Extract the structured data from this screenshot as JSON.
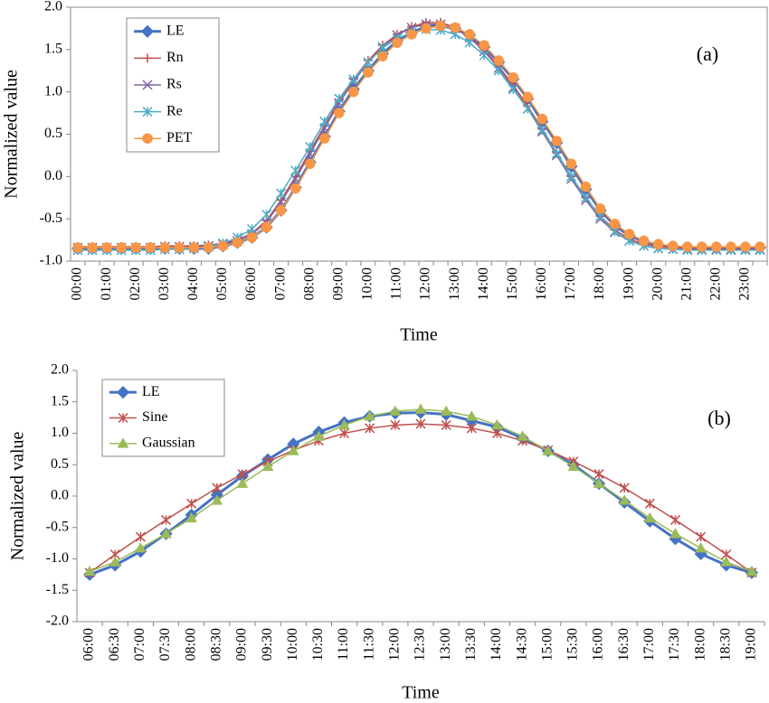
{
  "chart_data": [
    {
      "type": "line",
      "annotation": "(a)",
      "xlabel": "Time",
      "ylabel": "Normalized value",
      "categories": [
        "00:00",
        null,
        "01:00",
        null,
        "02:00",
        null,
        "03:00",
        null,
        "04:00",
        null,
        "05:00",
        null,
        "06:00",
        null,
        "07:00",
        null,
        "08:00",
        null,
        "09:00",
        null,
        "10:00",
        null,
        "11:00",
        null,
        "12:00",
        null,
        "13:00",
        null,
        "14:00",
        null,
        "15:00",
        null,
        "16:00",
        null,
        "17:00",
        null,
        "18:00",
        null,
        "19:00",
        null,
        "20:00",
        null,
        "21:00",
        null,
        "22:00",
        null,
        "23:00",
        null
      ],
      "ylim": [
        -1.0,
        2.0
      ],
      "yticks": [
        {
          "value": -1.0,
          "label": "-1.0"
        },
        -0.5,
        {
          "value": 0.0,
          "label": "0.0"
        },
        0.5,
        {
          "value": 1.0,
          "label": "1.0"
        },
        1.5,
        {
          "value": 2.0,
          "label": "2.0"
        }
      ],
      "legend": "upper left",
      "series": [
        {
          "name": "LE",
          "color": "#4472c4",
          "marker": "diamond",
          "width": 3,
          "values": [
            -0.85,
            -0.85,
            -0.85,
            -0.85,
            -0.85,
            -0.85,
            -0.85,
            -0.85,
            -0.85,
            -0.85,
            -0.82,
            -0.78,
            -0.72,
            -0.6,
            -0.4,
            -0.13,
            0.17,
            0.47,
            0.77,
            1.03,
            1.25,
            1.45,
            1.6,
            1.7,
            1.77,
            1.78,
            1.75,
            1.67,
            1.53,
            1.35,
            1.15,
            0.92,
            0.65,
            0.4,
            0.12,
            -0.15,
            -0.4,
            -0.58,
            -0.7,
            -0.77,
            -0.81,
            -0.83,
            -0.84,
            -0.84,
            -0.84,
            -0.84,
            -0.84,
            -0.84
          ]
        },
        {
          "name": "Rn",
          "color": "#c0504d",
          "marker": "plus",
          "width": 1.5,
          "values": [
            -0.83,
            -0.83,
            -0.83,
            -0.83,
            -0.83,
            -0.83,
            -0.82,
            -0.82,
            -0.82,
            -0.81,
            -0.79,
            -0.75,
            -0.67,
            -0.52,
            -0.28,
            0.0,
            0.3,
            0.6,
            0.9,
            1.15,
            1.37,
            1.55,
            1.68,
            1.77,
            1.82,
            1.82,
            1.76,
            1.65,
            1.5,
            1.3,
            1.08,
            0.83,
            0.56,
            0.28,
            0.0,
            -0.25,
            -0.47,
            -0.63,
            -0.74,
            -0.8,
            -0.83,
            -0.84,
            -0.84,
            -0.84,
            -0.84,
            -0.84,
            -0.84,
            -0.84
          ]
        },
        {
          "name": "Rs",
          "color": "#8064a2",
          "marker": "x",
          "width": 1.5,
          "values": [
            -0.84,
            -0.84,
            -0.84,
            -0.84,
            -0.84,
            -0.84,
            -0.83,
            -0.83,
            -0.83,
            -0.82,
            -0.8,
            -0.76,
            -0.68,
            -0.54,
            -0.3,
            -0.03,
            0.27,
            0.57,
            0.87,
            1.12,
            1.35,
            1.53,
            1.67,
            1.76,
            1.8,
            1.8,
            1.75,
            1.64,
            1.48,
            1.28,
            1.05,
            0.8,
            0.53,
            0.25,
            -0.03,
            -0.28,
            -0.5,
            -0.66,
            -0.76,
            -0.82,
            -0.85,
            -0.86,
            -0.86,
            -0.86,
            -0.86,
            -0.86,
            -0.86,
            -0.86
          ]
        },
        {
          "name": "Re",
          "color": "#4bacc6",
          "marker": "asterisk",
          "width": 1.5,
          "values": [
            -0.87,
            -0.87,
            -0.87,
            -0.87,
            -0.87,
            -0.87,
            -0.86,
            -0.86,
            -0.85,
            -0.83,
            -0.79,
            -0.72,
            -0.62,
            -0.45,
            -0.2,
            0.07,
            0.35,
            0.65,
            0.92,
            1.15,
            1.35,
            1.52,
            1.63,
            1.7,
            1.74,
            1.73,
            1.68,
            1.58,
            1.43,
            1.25,
            1.03,
            0.8,
            0.55,
            0.27,
            0.0,
            -0.25,
            -0.47,
            -0.65,
            -0.76,
            -0.82,
            -0.85,
            -0.86,
            -0.87,
            -0.87,
            -0.87,
            -0.87,
            -0.87,
            -0.87
          ]
        },
        {
          "name": "PET",
          "color": "#f79646",
          "marker": "circle",
          "width": 1.5,
          "values": [
            -0.84,
            -0.84,
            -0.84,
            -0.84,
            -0.84,
            -0.84,
            -0.84,
            -0.84,
            -0.84,
            -0.84,
            -0.82,
            -0.78,
            -0.72,
            -0.6,
            -0.4,
            -0.14,
            0.15,
            0.45,
            0.75,
            1.0,
            1.23,
            1.42,
            1.58,
            1.68,
            1.75,
            1.78,
            1.76,
            1.68,
            1.55,
            1.37,
            1.17,
            0.94,
            0.68,
            0.42,
            0.15,
            -0.12,
            -0.38,
            -0.56,
            -0.68,
            -0.76,
            -0.8,
            -0.82,
            -0.83,
            -0.83,
            -0.83,
            -0.83,
            -0.83,
            -0.83
          ]
        }
      ]
    },
    {
      "type": "line",
      "annotation": "(b)",
      "xlabel": "Time",
      "ylabel": "Normalized value",
      "categories": [
        "06:00",
        "06:30",
        "07:00",
        "07:30",
        "08:00",
        "08:30",
        "09:00",
        "09:30",
        "10:00",
        "10:30",
        "11:00",
        "11:30",
        "12:00",
        "12:30",
        "13:00",
        "13:30",
        "14:00",
        "14:30",
        "15:00",
        "15:30",
        "16:00",
        "16:30",
        "17:00",
        "17:30",
        "18:00",
        "18:30",
        "19:00"
      ],
      "ylim": [
        -2.0,
        2.0
      ],
      "yticks": [
        {
          "value": -2.0,
          "label": "-2.0"
        },
        -1.5,
        {
          "value": -1.0,
          "label": "-1.0"
        },
        -0.5,
        {
          "value": 0.0,
          "label": "0.0"
        },
        0.5,
        {
          "value": 1.0,
          "label": "1.0"
        },
        1.5,
        {
          "value": 2.0,
          "label": "2.0"
        }
      ],
      "legend": "upper left",
      "series": [
        {
          "name": "LE",
          "color": "#4472c4",
          "marker": "diamond",
          "width": 3,
          "values": [
            -1.25,
            -1.1,
            -0.88,
            -0.6,
            -0.3,
            0.02,
            0.32,
            0.58,
            0.83,
            1.02,
            1.17,
            1.27,
            1.32,
            1.33,
            1.3,
            1.2,
            1.1,
            0.92,
            0.72,
            0.5,
            0.2,
            -0.1,
            -0.4,
            -0.68,
            -0.92,
            -1.1,
            -1.22
          ]
        },
        {
          "name": "Sine",
          "color": "#c0504d",
          "marker": "asterisk",
          "width": 1.5,
          "values": [
            -1.22,
            -0.93,
            -0.65,
            -0.38,
            -0.12,
            0.13,
            0.35,
            0.55,
            0.73,
            0.88,
            1.0,
            1.08,
            1.13,
            1.15,
            1.13,
            1.08,
            1.0,
            0.88,
            0.73,
            0.55,
            0.35,
            0.13,
            -0.12,
            -0.38,
            -0.65,
            -0.93,
            -1.22
          ]
        },
        {
          "name": "Gaussian",
          "color": "#9bbb59",
          "marker": "triangle",
          "width": 1.5,
          "values": [
            -1.2,
            -1.05,
            -0.83,
            -0.6,
            -0.35,
            -0.07,
            0.2,
            0.47,
            0.72,
            0.95,
            1.13,
            1.27,
            1.35,
            1.38,
            1.35,
            1.27,
            1.13,
            0.95,
            0.72,
            0.47,
            0.2,
            -0.07,
            -0.35,
            -0.6,
            -0.83,
            -1.05,
            -1.2
          ]
        }
      ]
    }
  ]
}
